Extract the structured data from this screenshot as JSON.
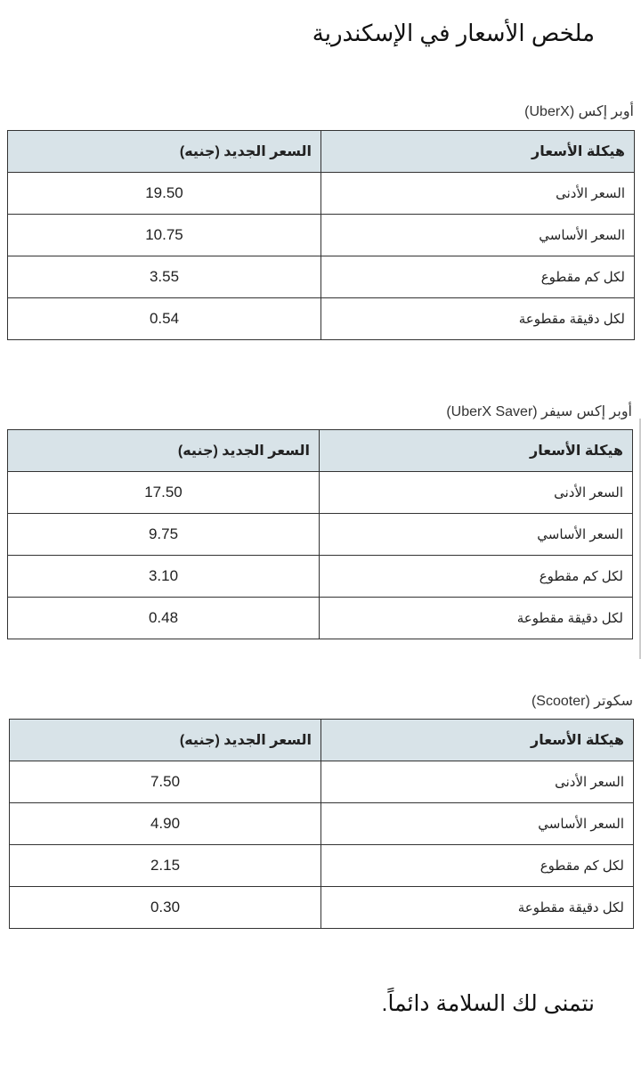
{
  "title": "ملخص الأسعار في الإسكندرية",
  "tables": [
    {
      "caption": "أوبر إكس (UberX)",
      "headers": [
        "هيكلة الأسعار",
        "السعر الجديد (جنيه)"
      ],
      "rows": [
        {
          "label": "السعر الأدنى",
          "value": "19.50"
        },
        {
          "label": "السعر الأساسي",
          "value": "10.75"
        },
        {
          "label": "لكل كم مقطوع",
          "value": "3.55"
        },
        {
          "label": "لكل دقيقة مقطوعة",
          "value": "0.54"
        }
      ]
    },
    {
      "caption": "أوبر إكس سيفر (UberX Saver)",
      "headers": [
        "هيكلة الأسعار",
        "السعر الجديد (جنيه)"
      ],
      "rows": [
        {
          "label": "السعر الأدنى",
          "value": "17.50"
        },
        {
          "label": "السعر الأساسي",
          "value": "9.75"
        },
        {
          "label": "لكل كم مقطوع",
          "value": "3.10"
        },
        {
          "label": "لكل دقيقة مقطوعة",
          "value": "0.48"
        }
      ]
    },
    {
      "caption": "سكوتر (Scooter)",
      "headers": [
        "هيكلة الأسعار",
        "السعر الجديد (جنيه)"
      ],
      "rows": [
        {
          "label": "السعر الأدنى",
          "value": "7.50"
        },
        {
          "label": "السعر الأساسي",
          "value": "4.90"
        },
        {
          "label": "لكل كم مقطوع",
          "value": "2.15"
        },
        {
          "label": "لكل دقيقة مقطوعة",
          "value": "0.30"
        }
      ]
    }
  ],
  "footer": "نتمنى لك السلامة دائماً.",
  "colors": {
    "header_bg": "#d8e3e8",
    "border": "#333333"
  }
}
